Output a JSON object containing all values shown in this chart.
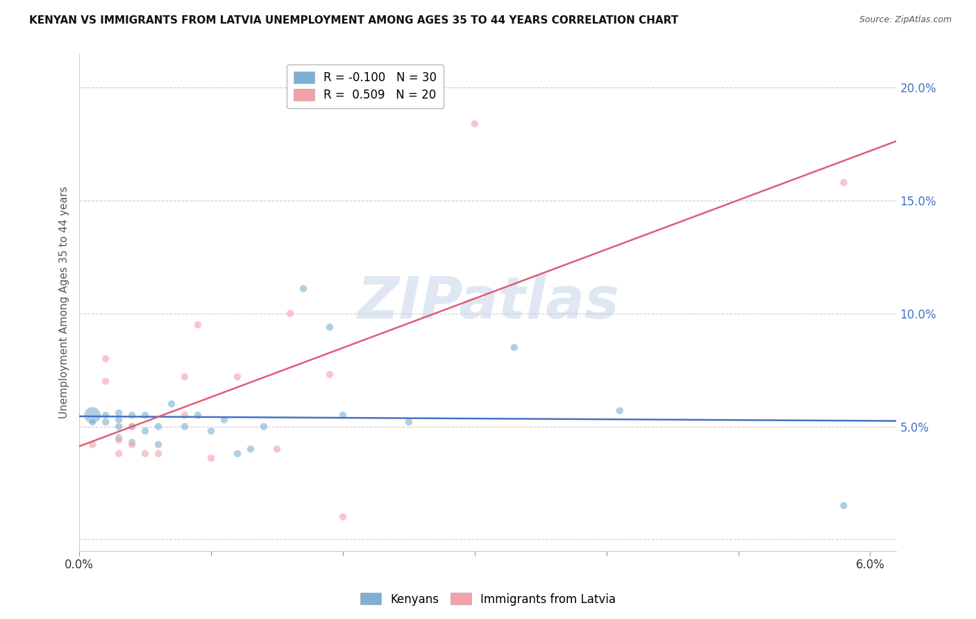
{
  "title": "KENYAN VS IMMIGRANTS FROM LATVIA UNEMPLOYMENT AMONG AGES 35 TO 44 YEARS CORRELATION CHART",
  "source": "Source: ZipAtlas.com",
  "ylabel": "Unemployment Among Ages 35 to 44 years",
  "xlim": [
    0.0,
    0.062
  ],
  "ylim": [
    -0.005,
    0.215
  ],
  "x_ticks": [
    0.0,
    0.01,
    0.02,
    0.03,
    0.04,
    0.05,
    0.06
  ],
  "x_tick_labels": [
    "0.0%",
    "",
    "",
    "",
    "",
    "",
    "6.0%"
  ],
  "y_ticks": [
    0.0,
    0.05,
    0.1,
    0.15,
    0.2
  ],
  "y_tick_labels": [
    "",
    "5.0%",
    "10.0%",
    "15.0%",
    "20.0%"
  ],
  "legend1_label": "R = -0.100   N = 30",
  "legend2_label": "R =  0.509   N = 20",
  "legend_xlabel": "Kenyans",
  "legend_ylabel": "Immigrants from Latvia",
  "blue_color": "#7BAFD4",
  "pink_color": "#F4A0A8",
  "blue_line_color": "#4472C4",
  "pink_line_color": "#E05C75",
  "watermark_text": "ZIPatlas",
  "kenyan_x": [
    0.001,
    0.001,
    0.002,
    0.002,
    0.003,
    0.003,
    0.003,
    0.003,
    0.004,
    0.004,
    0.004,
    0.005,
    0.005,
    0.006,
    0.006,
    0.007,
    0.008,
    0.009,
    0.01,
    0.011,
    0.012,
    0.013,
    0.014,
    0.017,
    0.019,
    0.02,
    0.025,
    0.033,
    0.041,
    0.058
  ],
  "kenyan_y": [
    0.055,
    0.052,
    0.055,
    0.052,
    0.056,
    0.053,
    0.05,
    0.045,
    0.055,
    0.05,
    0.043,
    0.055,
    0.048,
    0.05,
    0.042,
    0.06,
    0.05,
    0.055,
    0.048,
    0.053,
    0.038,
    0.04,
    0.05,
    0.111,
    0.094,
    0.055,
    0.052,
    0.085,
    0.057,
    0.015
  ],
  "kenyan_sizes": [
    300,
    60,
    60,
    60,
    60,
    60,
    60,
    60,
    60,
    60,
    60,
    60,
    60,
    60,
    60,
    60,
    60,
    60,
    60,
    60,
    60,
    60,
    60,
    60,
    60,
    60,
    60,
    60,
    60,
    60
  ],
  "latvia_x": [
    0.001,
    0.002,
    0.002,
    0.003,
    0.003,
    0.004,
    0.004,
    0.005,
    0.006,
    0.008,
    0.008,
    0.009,
    0.01,
    0.012,
    0.015,
    0.016,
    0.019,
    0.02,
    0.03,
    0.058
  ],
  "latvia_y": [
    0.042,
    0.08,
    0.07,
    0.044,
    0.038,
    0.05,
    0.042,
    0.038,
    0.038,
    0.055,
    0.072,
    0.095,
    0.036,
    0.072,
    0.04,
    0.1,
    0.073,
    0.01,
    0.184,
    0.158
  ],
  "latvia_sizes": [
    60,
    60,
    60,
    60,
    60,
    60,
    60,
    60,
    60,
    60,
    60,
    60,
    60,
    60,
    60,
    60,
    60,
    60,
    60,
    60
  ]
}
